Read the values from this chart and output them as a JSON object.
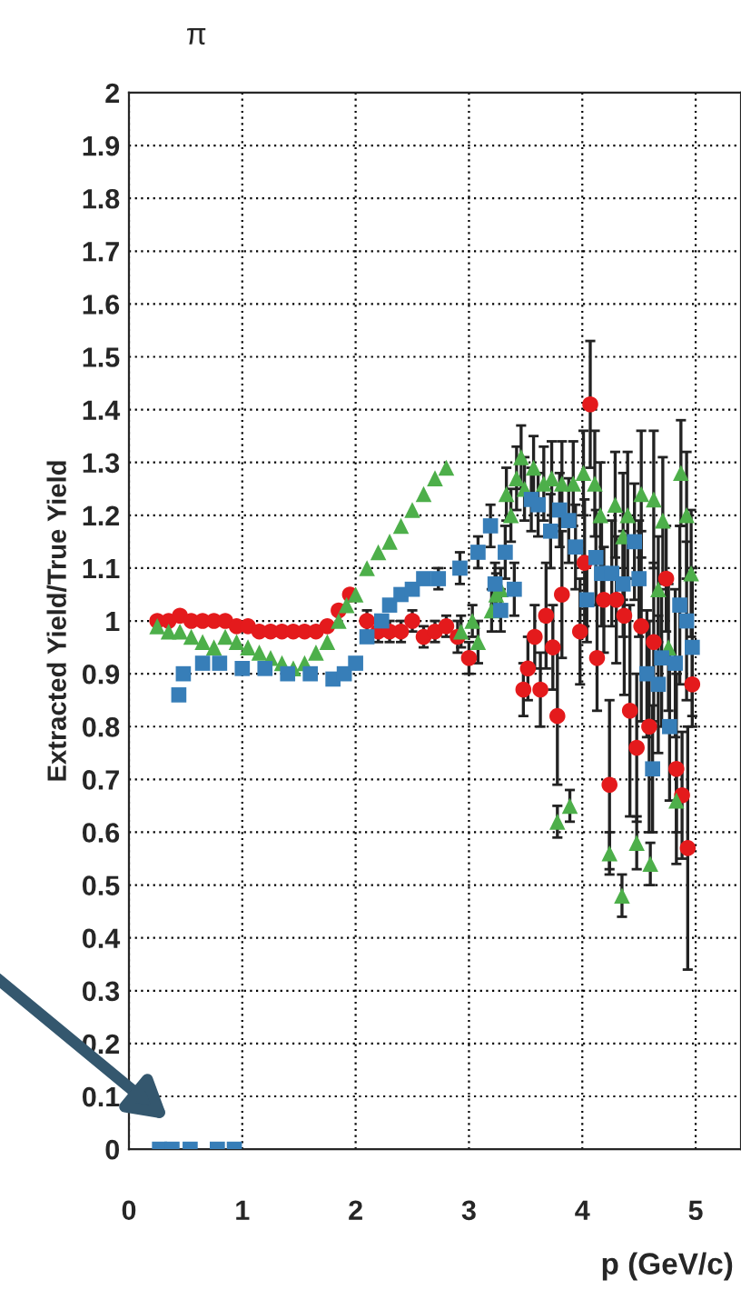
{
  "chart_data": {
    "type": "scatter",
    "title": "π",
    "xlabel": "p (GeV/c)",
    "ylabel": "Extracted Yield/True Yield",
    "xlim": [
      0,
      5.4
    ],
    "xticks": [
      0,
      1,
      2,
      3,
      4,
      5
    ],
    "ylim": [
      0,
      2
    ],
    "yticks": [
      0,
      0.1,
      0.2,
      0.3,
      0.4,
      0.5,
      0.6,
      0.7,
      0.8,
      0.9,
      1,
      1.1,
      1.2,
      1.3,
      1.4,
      1.5,
      1.6,
      1.7,
      1.8,
      1.9,
      2
    ],
    "grid": true,
    "series": [
      {
        "color": "#e41a1c",
        "marker": "circle",
        "x": [
          0.25,
          0.35,
          0.45,
          0.55,
          0.65,
          0.75,
          0.85,
          0.95,
          1.05,
          1.15,
          1.25,
          1.35,
          1.45,
          1.55,
          1.65,
          1.75,
          1.85,
          1.95,
          2.1,
          2.2,
          2.3,
          2.4,
          2.5,
          2.6,
          2.7,
          2.8,
          2.9,
          3.0,
          3.48,
          3.52,
          3.58,
          3.63,
          3.68,
          3.74,
          3.78,
          3.82,
          3.98,
          4.02,
          4.07,
          4.13,
          4.19,
          4.24,
          4.3,
          4.37,
          4.42,
          4.48,
          4.52,
          4.59,
          4.63,
          4.74,
          4.83,
          4.88,
          4.93,
          4.97
        ],
        "values": [
          1.0,
          1.0,
          1.01,
          1.0,
          1.0,
          1.0,
          1.0,
          0.99,
          0.99,
          0.98,
          0.98,
          0.98,
          0.98,
          0.98,
          0.98,
          0.99,
          1.02,
          1.05,
          1.0,
          0.98,
          0.98,
          0.98,
          1.0,
          0.97,
          0.98,
          0.99,
          0.97,
          0.93,
          0.87,
          0.91,
          0.97,
          0.87,
          1.01,
          0.95,
          0.82,
          1.05,
          0.98,
          1.11,
          1.41,
          0.93,
          1.04,
          0.69,
          1.04,
          1.01,
          0.83,
          0.76,
          0.99,
          0.8,
          0.96,
          1.08,
          0.72,
          0.67,
          0.57,
          0.88
        ],
        "errors": [
          null,
          null,
          null,
          null,
          null,
          null,
          null,
          null,
          null,
          null,
          null,
          null,
          null,
          null,
          null,
          null,
          null,
          null,
          0.02,
          0.02,
          0.02,
          0.02,
          0.02,
          0.02,
          0.02,
          0.02,
          0.03,
          0.03,
          0.05,
          0.06,
          0.06,
          0.07,
          0.1,
          0.08,
          0.13,
          0.12,
          0.1,
          0.12,
          0.12,
          0.1,
          0.1,
          0.16,
          0.12,
          0.15,
          0.2,
          0.14,
          0.18,
          0.2,
          0.15,
          0.1,
          0.18,
          0.12,
          0.23,
          0.06
        ]
      },
      {
        "color": "#4daf4a",
        "marker": "triangle",
        "x": [
          0.25,
          0.35,
          0.45,
          0.55,
          0.65,
          0.75,
          0.85,
          0.95,
          1.05,
          1.15,
          1.25,
          1.35,
          1.45,
          1.55,
          1.65,
          1.75,
          1.85,
          1.92,
          2.0,
          2.1,
          2.2,
          2.3,
          2.4,
          2.5,
          2.6,
          2.7,
          2.8,
          2.93,
          3.03,
          3.08,
          3.2,
          3.24,
          3.28,
          3.33,
          3.37,
          3.42,
          3.46,
          3.49,
          3.57,
          3.66,
          3.73,
          3.78,
          3.82,
          3.89,
          3.92,
          4.01,
          4.11,
          4.16,
          4.24,
          4.29,
          4.35,
          4.36,
          4.4,
          4.48,
          4.52,
          4.6,
          4.63,
          4.67,
          4.71,
          4.76,
          4.83,
          4.87,
          4.92,
          4.96
        ],
        "values": [
          0.99,
          0.98,
          0.98,
          0.97,
          0.96,
          0.95,
          0.97,
          0.96,
          0.95,
          0.94,
          0.93,
          0.92,
          0.91,
          0.92,
          0.94,
          0.96,
          1.0,
          1.03,
          1.05,
          1.1,
          1.13,
          1.15,
          1.18,
          1.21,
          1.24,
          1.27,
          1.29,
          0.98,
          1.0,
          0.96,
          1.02,
          1.05,
          1.06,
          1.24,
          1.2,
          1.27,
          1.31,
          1.25,
          1.29,
          1.26,
          1.27,
          0.62,
          1.26,
          0.65,
          1.26,
          1.28,
          1.26,
          1.2,
          0.56,
          1.22,
          0.48,
          1.16,
          1.2,
          0.58,
          1.24,
          0.54,
          1.23,
          1.06,
          1.19,
          0.95,
          0.66,
          1.28,
          1.2,
          1.09
        ],
        "errors": [
          null,
          null,
          null,
          null,
          null,
          null,
          null,
          null,
          null,
          null,
          null,
          null,
          null,
          null,
          null,
          null,
          null,
          null,
          null,
          null,
          null,
          null,
          null,
          null,
          null,
          null,
          null,
          0.03,
          0.03,
          0.04,
          0.04,
          0.04,
          0.04,
          0.05,
          0.05,
          0.06,
          0.06,
          0.06,
          0.06,
          0.07,
          0.07,
          0.03,
          0.08,
          0.03,
          0.08,
          0.08,
          0.1,
          0.1,
          0.04,
          0.1,
          0.04,
          0.12,
          0.12,
          0.05,
          0.12,
          0.04,
          0.13,
          0.1,
          0.12,
          0.12,
          0.06,
          0.1,
          0.12,
          0.12
        ]
      },
      {
        "color": "#377eb8",
        "marker": "square",
        "x": [
          0.27,
          0.38,
          0.44,
          0.48,
          0.54,
          0.65,
          0.78,
          0.8,
          0.93,
          1.0,
          1.2,
          1.4,
          1.6,
          1.8,
          1.9,
          2.0,
          2.1,
          2.23,
          2.3,
          2.4,
          2.5,
          2.6,
          2.73,
          2.92,
          3.08,
          3.19,
          3.23,
          3.28,
          3.32,
          3.4,
          3.55,
          3.61,
          3.72,
          3.8,
          3.88,
          3.94,
          4.04,
          4.12,
          4.17,
          4.26,
          4.36,
          4.46,
          4.5,
          4.57,
          4.62,
          4.67,
          4.7,
          4.77,
          4.82,
          4.86,
          4.92,
          4.97
        ],
        "values": [
          0,
          0,
          0.86,
          0.9,
          0,
          0.92,
          0,
          0.92,
          0,
          0.91,
          0.91,
          0.9,
          0.9,
          0.89,
          0.9,
          0.92,
          0.97,
          1.0,
          1.03,
          1.05,
          1.06,
          1.08,
          1.08,
          1.1,
          1.13,
          1.18,
          1.07,
          1.02,
          1.13,
          1.06,
          1.23,
          1.22,
          1.17,
          1.21,
          1.19,
          1.14,
          1.04,
          1.12,
          1.09,
          1.09,
          1.07,
          1.15,
          1.08,
          0.9,
          0.72,
          0.88,
          0.93,
          0.8,
          0.92,
          1.03,
          1.0,
          0.95
        ],
        "errors": [
          null,
          null,
          null,
          null,
          null,
          null,
          null,
          null,
          null,
          null,
          null,
          null,
          null,
          null,
          null,
          null,
          null,
          null,
          null,
          null,
          null,
          null,
          0.02,
          0.03,
          0.03,
          0.04,
          0.04,
          0.04,
          0.05,
          0.05,
          0.06,
          0.06,
          0.07,
          0.07,
          0.08,
          0.08,
          0.08,
          0.09,
          0.1,
          0.1,
          0.1,
          0.11,
          0.11,
          0.12,
          0.12,
          0.13,
          0.13,
          0.14,
          0.14,
          0.15,
          0.15,
          0.15
        ]
      }
    ]
  }
}
